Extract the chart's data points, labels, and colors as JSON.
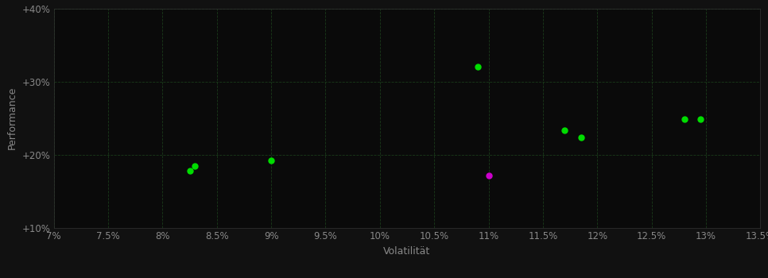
{
  "background_color": "#111111",
  "plot_bg_color": "#0a0a0a",
  "grid_color": "#1a3a1a",
  "grid_style": "--",
  "xlabel": "Volatilität",
  "ylabel": "Performance",
  "xlim": [
    0.07,
    0.135
  ],
  "ylim": [
    0.1,
    0.4
  ],
  "xticks": [
    0.07,
    0.075,
    0.08,
    0.085,
    0.09,
    0.095,
    0.1,
    0.105,
    0.11,
    0.115,
    0.12,
    0.125,
    0.13,
    0.135
  ],
  "xtick_labels": [
    "7%",
    "7.5%",
    "8%",
    "8.5%",
    "9%",
    "9.5%",
    "10%",
    "10.5%",
    "11%",
    "11.5%",
    "12%",
    "12.5%",
    "13%",
    "13.5%"
  ],
  "yticks": [
    0.1,
    0.2,
    0.3,
    0.4
  ],
  "ytick_labels": [
    "+10%",
    "+20%",
    "+30%",
    "+40%"
  ],
  "green_points": [
    [
      0.083,
      0.185
    ],
    [
      0.0825,
      0.178
    ],
    [
      0.09,
      0.192
    ],
    [
      0.109,
      0.32
    ],
    [
      0.117,
      0.233
    ],
    [
      0.1185,
      0.224
    ],
    [
      0.128,
      0.249
    ],
    [
      0.1295,
      0.249
    ]
  ],
  "magenta_points": [
    [
      0.11,
      0.172
    ]
  ],
  "green_color": "#00dd00",
  "magenta_color": "#cc00cc",
  "point_size": 25,
  "tick_color": "#888888",
  "label_color": "#888888",
  "tick_fontsize": 8.5,
  "label_fontsize": 9,
  "spine_color": "#333333"
}
